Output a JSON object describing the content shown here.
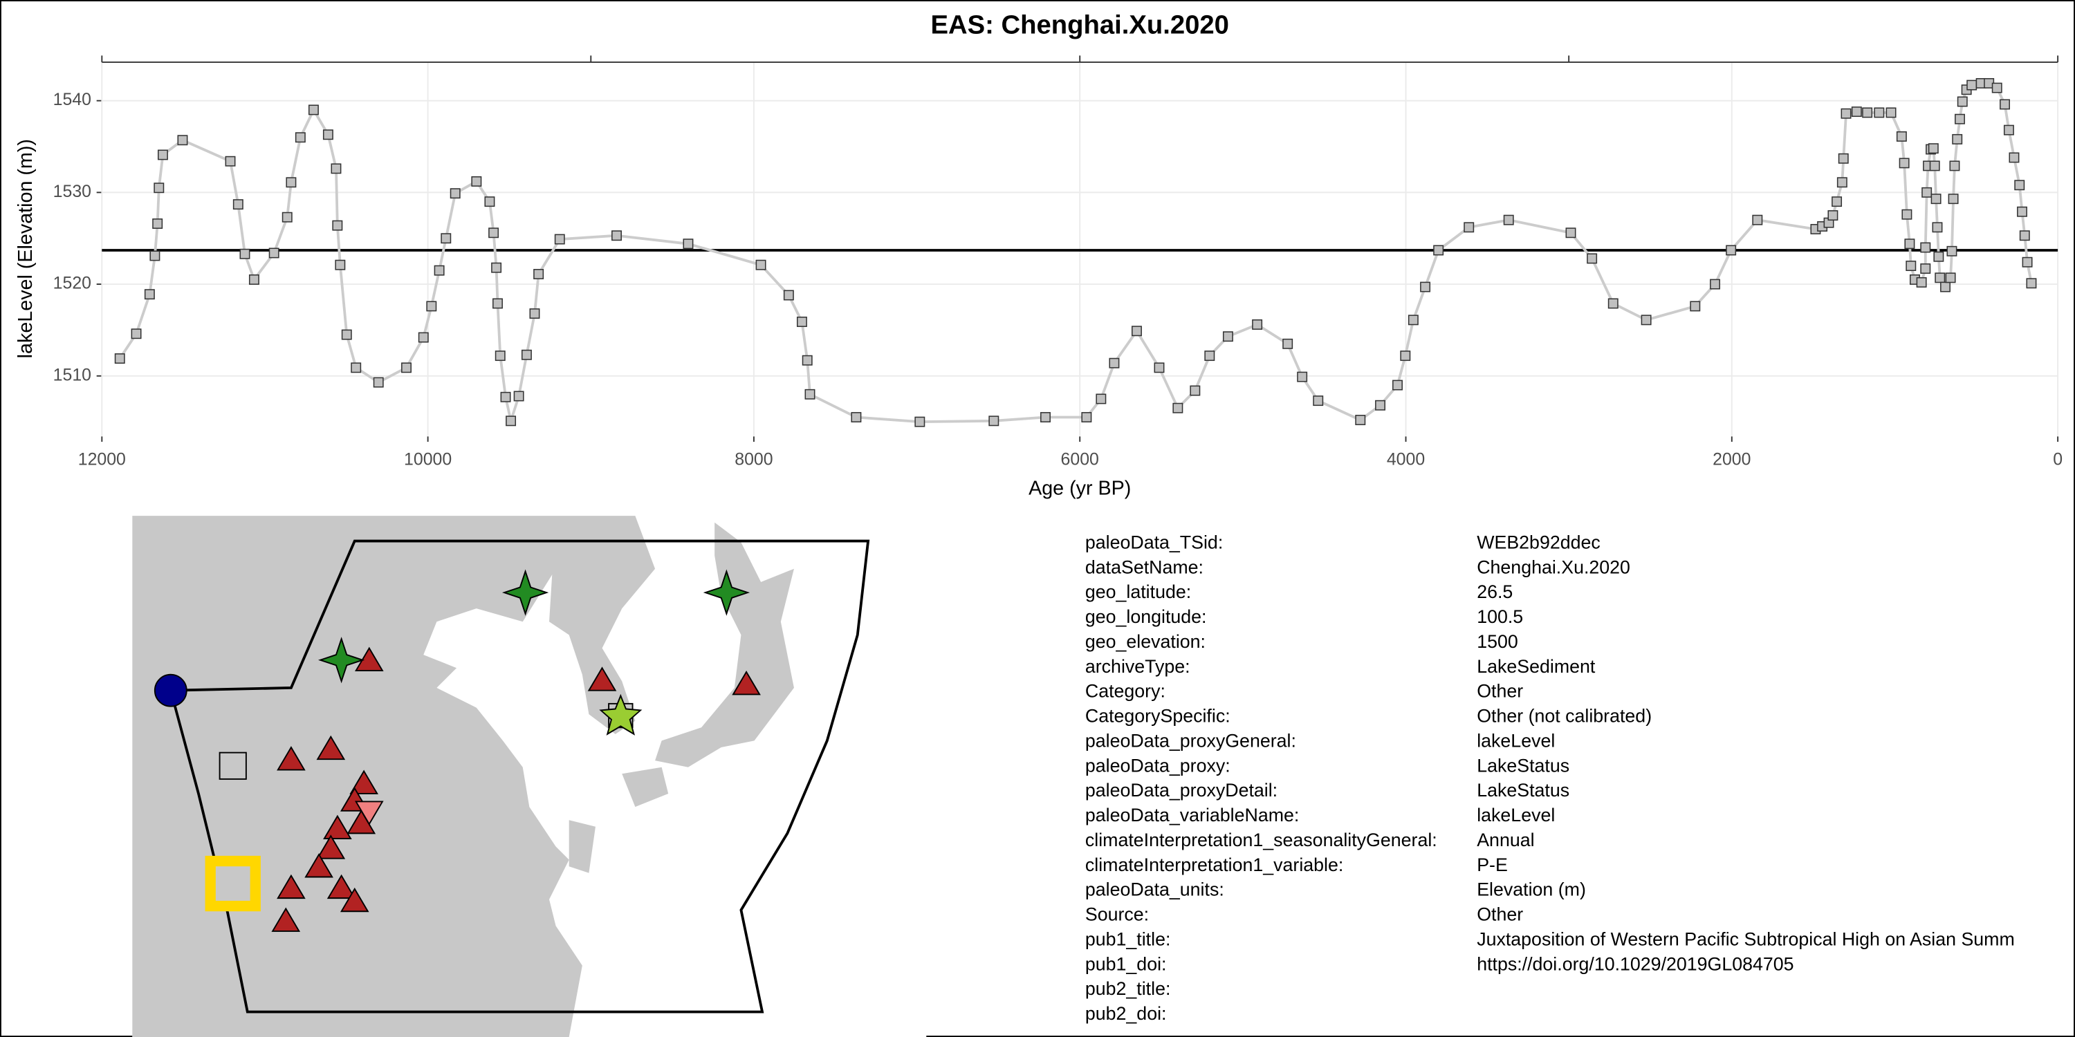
{
  "chart_data": {
    "type": "line",
    "title": "EAS: Chenghai.Xu.2020",
    "xlabel": "Age (yr BP)",
    "ylabel": "lakeLevel (Elevation (m))",
    "xlim": [
      12000,
      0
    ],
    "xticks": [
      12000,
      10000,
      8000,
      6000,
      4000,
      2000,
      0
    ],
    "x2ticks": [
      12000,
      9000,
      6000,
      3000,
      0
    ],
    "ylim": [
      1503.4,
      1544.2
    ],
    "yticks": [
      1510,
      1520,
      1530,
      1540
    ],
    "grid": true,
    "hline": 1523.7,
    "series": [
      {
        "color": "#cccccc",
        "x": [
          11890,
          11789,
          11707,
          11675,
          11659,
          11650,
          11626,
          11505,
          11212,
          11164,
          11123,
          11066,
          10944,
          10863,
          10839,
          10782,
          10701,
          10612,
          10563,
          10555,
          10538,
          10498,
          10441,
          10303,
          10132,
          10027,
          9978,
          9930,
          9889,
          9832,
          9702,
          9621,
          9597,
          9580,
          9572,
          9556,
          9523,
          9491,
          9442,
          9394,
          9345,
          9321,
          9191,
          8842,
          8403,
          7957,
          7786,
          7705,
          7672,
          7656,
          7372,
          6982,
          6528,
          6211,
          5959,
          5870,
          5789,
          5651,
          5513,
          5399,
          5293,
          5204,
          5091,
          4912,
          4725,
          4636,
          4538,
          4279,
          4157,
          4051,
          4003,
          3954,
          3881,
          3800,
          3613,
          3369,
          2988,
          2858,
          2728,
          2525,
          2225,
          2103,
          2005,
          1843,
          1486,
          1445,
          1405,
          1380,
          1356,
          1323,
          1315,
          1299,
          1234,
          1169,
          1096,
          1023,
          958,
          942,
          926,
          909,
          901,
          877,
          836,
          812,
          812,
          804,
          796,
          779,
          763,
          755,
          747,
          739,
          731,
          723,
          690,
          658,
          650,
          641,
          633,
          617,
          601,
          585,
          560,
          528,
          471,
          422,
          373,
          325,
          300,
          268,
          235,
          219,
          203,
          187,
          162
        ],
        "values": [
          1511.9,
          1514.6,
          1518.9,
          1523.1,
          1526.6,
          1530.5,
          1534.1,
          1535.7,
          1533.4,
          1528.7,
          1523.3,
          1520.5,
          1523.4,
          1527.3,
          1531.1,
          1536.0,
          1539.0,
          1536.3,
          1532.6,
          1526.4,
          1522.1,
          1514.5,
          1510.9,
          1509.3,
          1510.9,
          1514.2,
          1517.6,
          1521.5,
          1525.0,
          1529.9,
          1531.2,
          1529.0,
          1525.6,
          1521.8,
          1517.9,
          1512.2,
          1507.7,
          1505.1,
          1507.8,
          1512.3,
          1516.8,
          1521.1,
          1524.9,
          1525.3,
          1524.4,
          1522.1,
          1518.8,
          1515.9,
          1511.7,
          1508.0,
          1505.5,
          1505.0,
          1505.1,
          1505.5,
          1505.5,
          1507.5,
          1511.4,
          1514.9,
          1510.9,
          1506.5,
          1508.4,
          1512.2,
          1514.3,
          1515.6,
          1513.5,
          1509.9,
          1507.3,
          1505.2,
          1506.8,
          1509.0,
          1512.2,
          1516.1,
          1519.7,
          1523.7,
          1526.2,
          1527.0,
          1525.6,
          1522.8,
          1517.9,
          1516.1,
          1517.6,
          1520.0,
          1523.7,
          1527.0,
          1526.0,
          1526.3,
          1526.7,
          1527.5,
          1529.0,
          1531.1,
          1533.7,
          1538.6,
          1538.8,
          1538.7,
          1538.7,
          1538.7,
          1536.1,
          1533.2,
          1527.6,
          1524.4,
          1522.0,
          1520.5,
          1520.2,
          1521.7,
          1524.0,
          1530.0,
          1532.9,
          1534.7,
          1534.8,
          1532.9,
          1529.3,
          1526.2,
          1523.0,
          1520.7,
          1519.7,
          1520.7,
          1523.6,
          1529.3,
          1532.9,
          1535.8,
          1538.0,
          1539.9,
          1541.2,
          1541.7,
          1541.9,
          1541.9,
          1541.4,
          1539.6,
          1536.8,
          1533.8,
          1530.8,
          1527.9,
          1525.3,
          1522.4,
          1520.1
        ]
      }
    ]
  },
  "metadata": {
    "rows": [
      {
        "key": "paleoData_TSid:",
        "value": "WEB2b92ddec"
      },
      {
        "key": "dataSetName:",
        "value": "Chenghai.Xu.2020"
      },
      {
        "key": "geo_latitude:",
        "value": "26.5"
      },
      {
        "key": "geo_longitude:",
        "value": "100.5"
      },
      {
        "key": "geo_elevation:",
        "value": "1500"
      },
      {
        "key": "archiveType:",
        "value": "LakeSediment"
      },
      {
        "key": "Category:",
        "value": "Other"
      },
      {
        "key": "CategorySpecific:",
        "value": "Other (not calibrated)"
      },
      {
        "key": "paleoData_proxyGeneral:",
        "value": "lakeLevel"
      },
      {
        "key": "paleoData_proxy:",
        "value": "LakeStatus"
      },
      {
        "key": "paleoData_proxyDetail:",
        "value": "LakeStatus"
      },
      {
        "key": "paleoData_variableName:",
        "value": "lakeLevel"
      },
      {
        "key": "climateInterpretation1_seasonalityGeneral:",
        "value": "Annual"
      },
      {
        "key": "climateInterpretation1_variable:",
        "value": "P-E"
      },
      {
        "key": "paleoData_units:",
        "value": "Elevation (m)"
      },
      {
        "key": "Source:",
        "value": "Other"
      },
      {
        "key": "pub1_title:",
        "value": "Juxtaposition of Western Pacific Subtropical High on Asian Summ"
      },
      {
        "key": "pub1_doi:",
        "value": "https://doi.org/10.1029/2019GL084705"
      },
      {
        "key": "pub2_title:"
      },
      {
        "key": "pub2_doi:"
      }
    ]
  }
}
